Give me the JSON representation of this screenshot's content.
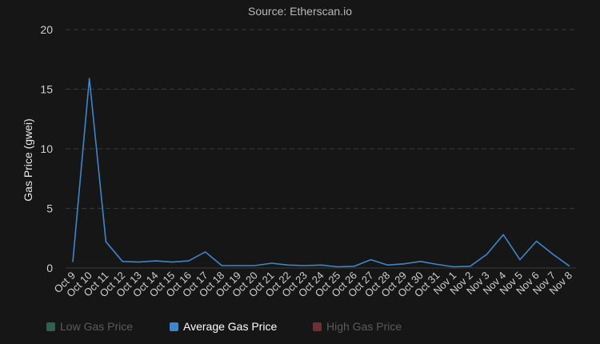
{
  "subtitle": "Source: Etherscan.io",
  "colors": {
    "background": "#161616",
    "grid": "#3a3a3a",
    "axis_text": "#cfcfcf",
    "line": "#3f86c8"
  },
  "legend": [
    {
      "label": "Low Gas Price",
      "color": "#4fa88a",
      "state": "hidden"
    },
    {
      "label": "Average Gas Price",
      "color": "#3f86c8",
      "state": "active"
    },
    {
      "label": "High Gas Price",
      "color": "#c9444f",
      "state": "hidden"
    }
  ],
  "chart_data": {
    "type": "line",
    "title": "",
    "subtitle": "Source: Etherscan.io",
    "xlabel": "",
    "ylabel": "Gas Price (gwei)",
    "ylim": [
      0,
      20
    ],
    "yticks": [
      0,
      5,
      10,
      15,
      20
    ],
    "grid": true,
    "legend_position": "bottom",
    "categories": [
      "Oct 9",
      "Oct 10",
      "Oct 11",
      "Oct 12",
      "Oct 13",
      "Oct 14",
      "Oct 15",
      "Oct 16",
      "Oct 17",
      "Oct 18",
      "Oct 19",
      "Oct 20",
      "Oct 21",
      "Oct 22",
      "Oct 23",
      "Oct 24",
      "Oct 25",
      "Oct 26",
      "Oct 27",
      "Oct 28",
      "Oct 29",
      "Oct 30",
      "Oct 31",
      "Nov 1",
      "Nov 2",
      "Nov 3",
      "Nov 4",
      "Nov 5",
      "Nov 6",
      "Nov 7",
      "Nov 8"
    ],
    "series": [
      {
        "name": "Average Gas Price",
        "values": [
          0.5,
          15.9,
          2.2,
          0.55,
          0.5,
          0.6,
          0.5,
          0.6,
          1.35,
          0.2,
          0.2,
          0.2,
          0.4,
          0.25,
          0.2,
          0.25,
          0.1,
          0.15,
          0.7,
          0.25,
          0.35,
          0.55,
          0.3,
          0.1,
          0.15,
          1.15,
          2.8,
          0.7,
          2.25,
          1.15,
          0.15
        ]
      }
    ]
  }
}
